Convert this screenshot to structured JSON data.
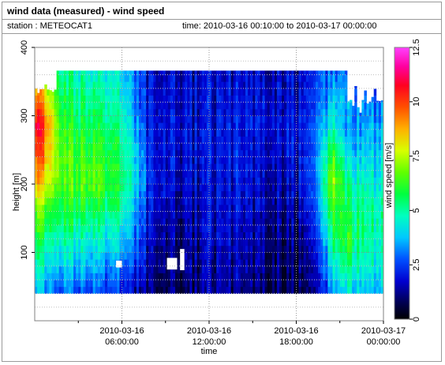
{
  "header": {
    "title": "wind data (measured) - wind speed",
    "station": "station : METEOCAT1",
    "time_range": "time: 2010-03-16 00:10:00 to 2010-03-17 00:00:00"
  },
  "chart_data": {
    "type": "heatmap",
    "xlabel": "time",
    "ylabel": "height [m]",
    "colorbar_label": "wind speed [m/s]",
    "xlim": [
      0,
      24
    ],
    "ylim": [
      0,
      400
    ],
    "clim": [
      0,
      12.5
    ],
    "x_ticks": [
      {
        "value": 6,
        "date": "2010-03-16",
        "time": "06:00:00"
      },
      {
        "value": 12,
        "date": "2010-03-16",
        "time": "12:00:00"
      },
      {
        "value": 18,
        "date": "2010-03-16",
        "time": "18:00:00"
      },
      {
        "value": 24,
        "date": "2010-03-17",
        "time": "00:00:00"
      }
    ],
    "y_ticks": [
      100,
      200,
      300,
      400
    ],
    "colorbar_ticks": [
      0,
      2.5,
      5,
      7.5,
      10,
      12.5
    ],
    "grid": true,
    "height_range": [
      40,
      366
    ],
    "profiles": [
      {
        "t": 0.5,
        "speeds": [
          3.5,
          4.5,
          5.5,
          6.5,
          8.5,
          9.5,
          10.5,
          9.0,
          7.5
        ]
      },
      {
        "t": 2.0,
        "speeds": [
          3.0,
          4.0,
          5.0,
          6.0,
          6.5,
          6.5,
          6.0,
          5.5,
          5.0
        ]
      },
      {
        "t": 4.0,
        "speeds": [
          2.5,
          3.5,
          4.5,
          5.5,
          6.5,
          6.0,
          5.5,
          5.0,
          4.5
        ]
      },
      {
        "t": 6.0,
        "speeds": [
          2.0,
          3.0,
          4.0,
          5.0,
          5.5,
          5.5,
          5.0,
          4.5,
          4.0
        ]
      },
      {
        "t": 7.0,
        "speeds": [
          1.5,
          2.5,
          3.0,
          3.5,
          4.0,
          4.0,
          3.5,
          3.0,
          3.0
        ]
      },
      {
        "t": 8.0,
        "speeds": [
          0.8,
          1.2,
          1.5,
          1.8,
          2.0,
          2.0,
          2.0,
          1.8,
          1.6
        ]
      },
      {
        "t": 10.0,
        "speeds": [
          0.6,
          0.8,
          1.0,
          1.2,
          1.5,
          1.6,
          1.7,
          1.6,
          1.5
        ]
      },
      {
        "t": 12.0,
        "speeds": [
          1.2,
          1.4,
          1.6,
          1.7,
          1.8,
          1.9,
          1.9,
          1.8,
          1.7
        ]
      },
      {
        "t": 14.0,
        "speeds": [
          1.2,
          1.4,
          1.6,
          1.8,
          1.9,
          2.0,
          2.0,
          1.9,
          1.8
        ]
      },
      {
        "t": 16.0,
        "speeds": [
          0.9,
          1.0,
          1.2,
          1.4,
          1.6,
          1.8,
          1.9,
          1.8,
          1.6
        ]
      },
      {
        "t": 18.0,
        "speeds": [
          0.6,
          0.8,
          1.0,
          1.3,
          1.6,
          1.8,
          1.9,
          1.8,
          1.6
        ]
      },
      {
        "t": 19.5,
        "speeds": [
          1.0,
          1.5,
          2.0,
          2.5,
          3.0,
          3.0,
          2.6,
          2.4,
          2.2
        ]
      },
      {
        "t": 20.5,
        "speeds": [
          3.5,
          4.5,
          5.5,
          6.5,
          7.5,
          6.5,
          5.0,
          4.0,
          3.0
        ]
      },
      {
        "t": 21.5,
        "speeds": [
          4.0,
          5.0,
          6.0,
          5.5,
          5.0,
          4.0,
          3.0,
          3.5,
          3.0
        ]
      },
      {
        "t": 23.0,
        "speeds": [
          3.5,
          4.5,
          5.0,
          5.0,
          4.5,
          4.0,
          3.5,
          3.0,
          2.5
        ]
      }
    ],
    "no_data_patches": [
      {
        "t0": 10.0,
        "t1": 10.3,
        "h0": 74,
        "h1": 105
      },
      {
        "t0": 9.1,
        "t1": 9.8,
        "h0": 75,
        "h1": 92
      },
      {
        "t0": 5.6,
        "t1": 6.0,
        "h0": 78,
        "h1": 88
      }
    ]
  }
}
